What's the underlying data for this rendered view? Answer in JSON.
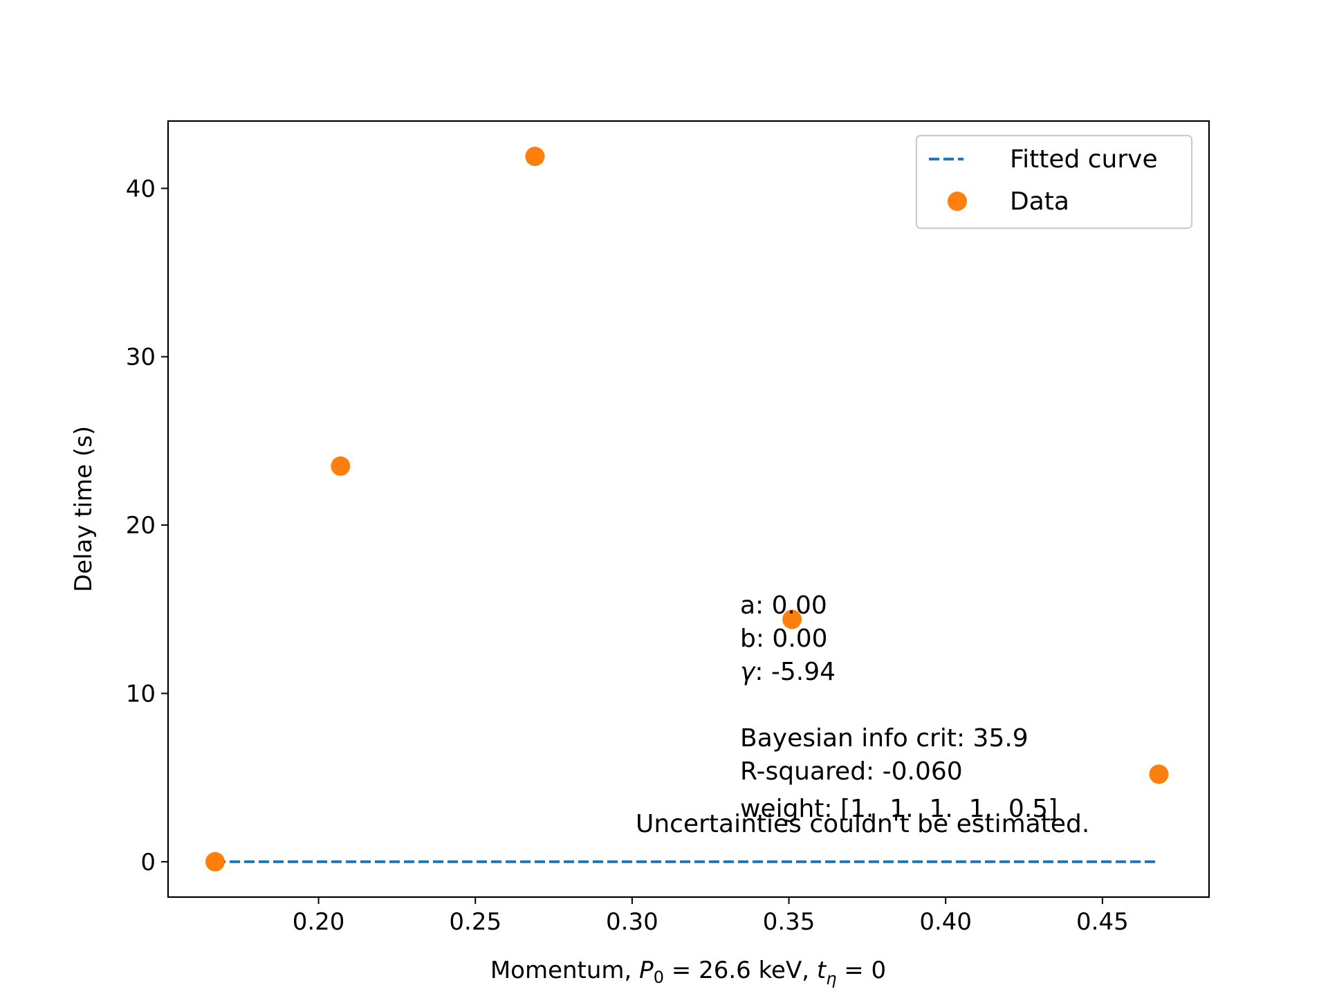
{
  "chart_data": {
    "type": "scatter",
    "title": "",
    "xlabel": {
      "prefix": "Momentum, ",
      "p_symbol": "P",
      "p_sub": "0",
      "p_value": " = 26.6 keV, ",
      "t_symbol": "t",
      "t_sub": "η",
      "t_value": " = 0"
    },
    "ylabel": "Delay time (s)",
    "xlim": [
      0.152,
      0.484
    ],
    "ylim": [
      -2.1,
      44.0
    ],
    "xticks": [
      0.2,
      0.25,
      0.3,
      0.35,
      0.4,
      0.45
    ],
    "xtick_labels": [
      "0.20",
      "0.25",
      "0.30",
      "0.35",
      "0.40",
      "0.45"
    ],
    "yticks": [
      0,
      10,
      20,
      30,
      40
    ],
    "ytick_labels": [
      "0",
      "10",
      "20",
      "30",
      "40"
    ],
    "grid": false,
    "legend_position": "top-right",
    "series": [
      {
        "name": "Fitted curve",
        "kind": "line",
        "style": "dashed",
        "color": "#1f77b4",
        "x": [
          0.167,
          0.468
        ],
        "y": [
          0.0,
          0.0
        ]
      },
      {
        "name": "Data",
        "kind": "scatter",
        "color": "#ff7f0e",
        "x": [
          0.167,
          0.207,
          0.269,
          0.351,
          0.468
        ],
        "y": [
          0.0,
          23.5,
          41.9,
          14.4,
          5.2
        ]
      }
    ],
    "annotations": {
      "params": [
        "a: 0.00",
        "b: 0.00"
      ],
      "gamma_symbol": "γ",
      "gamma_value": ": -5.94",
      "stats": [
        "Bayesian info crit: 35.9",
        "R-squared: -0.060",
        "weight: [1.  1.  1.  1.  0.5]"
      ],
      "warning": "Uncertainties couldn't be estimated.",
      "warning_color": "#ff0000"
    }
  }
}
